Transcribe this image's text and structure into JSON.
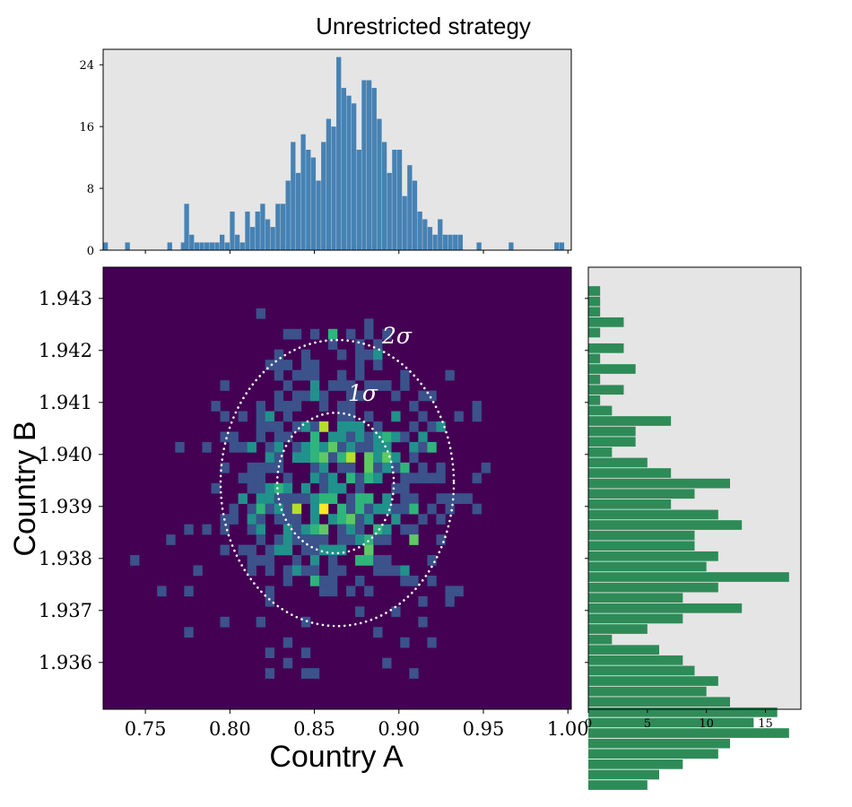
{
  "chart_data": {
    "type": "heatmap",
    "title": "Unrestricted strategy",
    "xlabel": "Country A",
    "ylabel": "Country B",
    "xlim": [
      0.725,
      1.002
    ],
    "ylim": [
      1.9351,
      1.9436
    ],
    "x_ticks": [
      "0.75",
      "0.80",
      "0.85",
      "0.90",
      "0.95",
      "1.00"
    ],
    "y_ticks": [
      "1.936",
      "1.937",
      "1.938",
      "1.939",
      "1.940",
      "1.941",
      "1.942",
      "1.943"
    ],
    "colormap": "viridis",
    "ellipses": [
      {
        "label": "1σ",
        "center": [
          0.8625,
          1.93945
        ],
        "half_width": 0.0345,
        "half_height": 0.00135
      },
      {
        "label": "2σ",
        "center": [
          0.8635,
          1.93945
        ],
        "half_width": 0.069,
        "half_height": 0.00275
      }
    ],
    "top_histogram": {
      "color": "#4682b4",
      "yticks": [
        "0",
        "8",
        "16",
        "24"
      ],
      "ylim": [
        0,
        26
      ],
      "bin_width": 0.0028,
      "bins": [
        [
          0.725,
          1
        ],
        [
          0.738,
          1
        ],
        [
          0.763,
          1
        ],
        [
          0.771,
          1
        ],
        [
          0.773,
          6
        ],
        [
          0.776,
          2
        ],
        [
          0.779,
          1
        ],
        [
          0.782,
          1
        ],
        [
          0.785,
          1
        ],
        [
          0.788,
          1
        ],
        [
          0.791,
          1
        ],
        [
          0.794,
          2
        ],
        [
          0.797,
          1
        ],
        [
          0.8,
          5
        ],
        [
          0.803,
          2
        ],
        [
          0.806,
          1
        ],
        [
          0.809,
          5
        ],
        [
          0.812,
          3
        ],
        [
          0.815,
          5
        ],
        [
          0.818,
          6
        ],
        [
          0.821,
          4
        ],
        [
          0.824,
          3
        ],
        [
          0.827,
          6
        ],
        [
          0.83,
          6
        ],
        [
          0.833,
          9
        ],
        [
          0.836,
          14
        ],
        [
          0.839,
          10
        ],
        [
          0.842,
          15
        ],
        [
          0.845,
          13
        ],
        [
          0.848,
          12
        ],
        [
          0.851,
          9
        ],
        [
          0.854,
          14
        ],
        [
          0.857,
          17
        ],
        [
          0.86,
          16
        ],
        [
          0.863,
          25
        ],
        [
          0.866,
          21
        ],
        [
          0.869,
          20
        ],
        [
          0.872,
          19
        ],
        [
          0.875,
          13
        ],
        [
          0.878,
          22
        ],
        [
          0.881,
          22
        ],
        [
          0.884,
          21
        ],
        [
          0.887,
          17
        ],
        [
          0.89,
          14
        ],
        [
          0.893,
          10
        ],
        [
          0.896,
          13
        ],
        [
          0.899,
          13
        ],
        [
          0.902,
          7
        ],
        [
          0.905,
          11
        ],
        [
          0.908,
          9
        ],
        [
          0.911,
          5
        ],
        [
          0.914,
          4
        ],
        [
          0.917,
          3
        ],
        [
          0.92,
          2
        ],
        [
          0.923,
          4
        ],
        [
          0.926,
          2
        ],
        [
          0.929,
          2
        ],
        [
          0.932,
          2
        ],
        [
          0.935,
          2
        ],
        [
          0.946,
          1
        ],
        [
          0.965,
          1
        ],
        [
          0.992,
          1
        ],
        [
          0.995,
          1
        ]
      ]
    },
    "right_histogram": {
      "color": "#2e8b57",
      "xticks": [
        "0",
        "5",
        "10",
        "15"
      ],
      "xlim": [
        0,
        18
      ],
      "bin_height": 0.000185,
      "bins": [
        [
          1.94305,
          1
        ],
        [
          1.94285,
          1
        ],
        [
          1.94265,
          1
        ],
        [
          1.94245,
          3
        ],
        [
          1.94225,
          1
        ],
        [
          1.94195,
          3
        ],
        [
          1.94175,
          1
        ],
        [
          1.94155,
          4
        ],
        [
          1.94135,
          1
        ],
        [
          1.94115,
          3
        ],
        [
          1.94095,
          1
        ],
        [
          1.94075,
          2
        ],
        [
          1.94055,
          7
        ],
        [
          1.94035,
          4
        ],
        [
          1.94015,
          4
        ],
        [
          1.93995,
          2
        ],
        [
          1.93975,
          5
        ],
        [
          1.93955,
          7
        ],
        [
          1.93935,
          12
        ],
        [
          1.93915,
          9
        ],
        [
          1.93895,
          7
        ],
        [
          1.93875,
          11
        ],
        [
          1.93855,
          13
        ],
        [
          1.93835,
          9
        ],
        [
          1.93815,
          9
        ],
        [
          1.93795,
          11
        ],
        [
          1.93775,
          10
        ],
        [
          1.93755,
          17
        ],
        [
          1.93735,
          11
        ],
        [
          1.93715,
          8
        ],
        [
          1.93695,
          13
        ],
        [
          1.93675,
          8
        ],
        [
          1.93655,
          5
        ],
        [
          1.93635,
          2
        ],
        [
          1.93615,
          6
        ],
        [
          1.93595,
          8
        ],
        [
          1.93575,
          9
        ],
        [
          1.93555,
          11
        ],
        [
          1.93535,
          10
        ],
        [
          1.93515,
          12
        ],
        [
          1.93495,
          16
        ],
        [
          1.93475,
          14
        ],
        [
          1.93455,
          17
        ],
        [
          1.93435,
          12
        ],
        [
          1.93415,
          11
        ],
        [
          1.93395,
          8
        ],
        [
          1.93375,
          6
        ],
        [
          1.93355,
          5
        ]
      ]
    }
  }
}
